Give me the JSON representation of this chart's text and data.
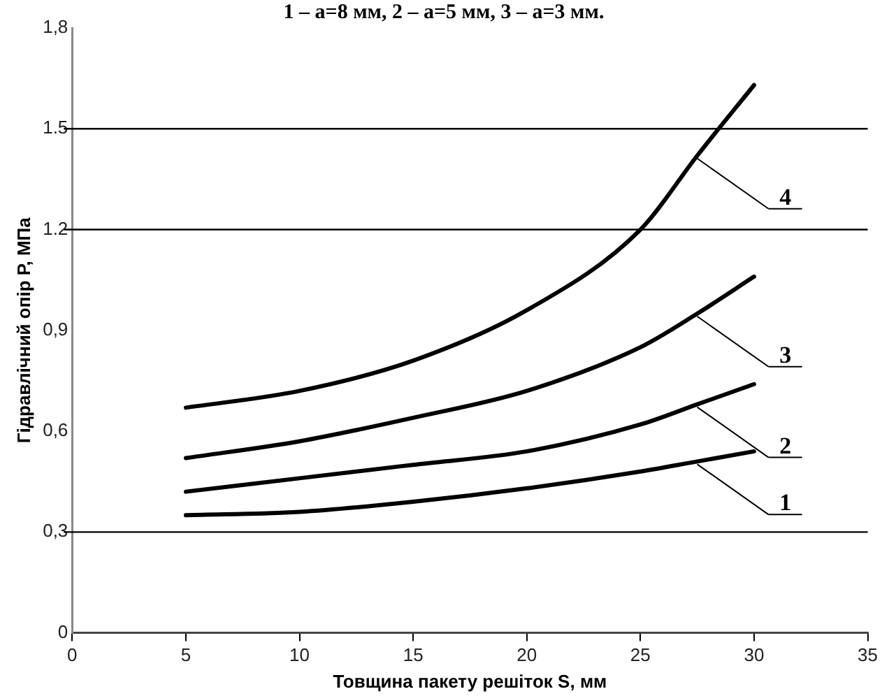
{
  "chart_data": {
    "type": "line",
    "title": "1 – a=8 мм, 2 – a=5 мм, 3 – a=3 мм.",
    "xlabel": "Товщина пакету решіток S, мм",
    "ylabel": "Гідравлічний опір Р, МПа",
    "x": [
      5,
      10,
      15,
      20,
      25,
      27.5,
      30
    ],
    "series": [
      {
        "name": "1",
        "color": "#000000",
        "values": [
          0.35,
          0.36,
          0.39,
          0.43,
          0.48,
          0.51,
          0.54
        ]
      },
      {
        "name": "2",
        "color": "#000000",
        "values": [
          0.42,
          0.46,
          0.5,
          0.54,
          0.62,
          0.68,
          0.74
        ]
      },
      {
        "name": "3",
        "color": "#000000",
        "values": [
          0.52,
          0.57,
          0.64,
          0.72,
          0.85,
          0.95,
          1.06
        ]
      },
      {
        "name": "4",
        "color": "#000000",
        "values": [
          0.67,
          0.72,
          0.81,
          0.96,
          1.2,
          1.42,
          1.63
        ]
      }
    ],
    "xlim": [
      0,
      35
    ],
    "xticks": [
      0,
      5,
      10,
      15,
      20,
      25,
      30,
      35
    ],
    "ylim": [
      0,
      1.8
    ],
    "yticks": [
      {
        "value": 0,
        "label": "0"
      },
      {
        "value": 0.3,
        "label": "0,3"
      },
      {
        "value": 0.6,
        "label": "0,6"
      },
      {
        "value": 0.9,
        "label": "0,9"
      },
      {
        "value": 1.2,
        "label": "1.2"
      },
      {
        "value": 1.5,
        "label": "1.5"
      },
      {
        "value": 1.8,
        "label": "1,8"
      }
    ],
    "ref_lines": [
      {
        "axis": "y",
        "value": 0.3,
        "color": "#000000"
      },
      {
        "axis": "y",
        "value": 1.2,
        "color": "#000000"
      },
      {
        "axis": "y",
        "value": 1.5,
        "color": "#000000"
      }
    ],
    "grid": false,
    "legend": "right",
    "marker": "none",
    "line_style": "solid"
  }
}
